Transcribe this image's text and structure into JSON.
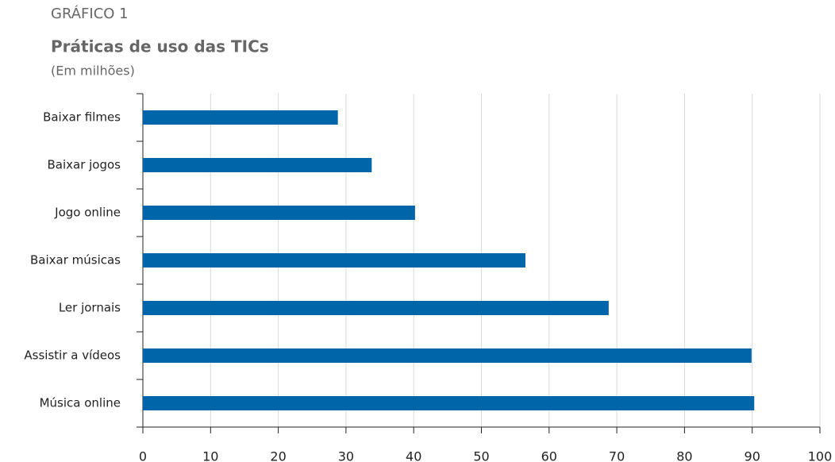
{
  "chart_data": {
    "type": "barh",
    "label": "GRÁFICO 1",
    "title": "Práticas de uso das TICs",
    "subtitle": "(Em milhões)",
    "categories": [
      "Baixar filmes",
      "Baixar jogos",
      "Jogo online",
      "Baixar músicas",
      "Ler jornais",
      "Assistir a vídeos",
      "Música online"
    ],
    "values": [
      28.8,
      33.8,
      40.2,
      56.5,
      68.8,
      89.9,
      90.3
    ],
    "color": "#0066aa",
    "xlim": [
      0,
      100
    ],
    "xticks": [
      0,
      10,
      20,
      30,
      40,
      50,
      60,
      70,
      80,
      90,
      100
    ],
    "grid": true
  }
}
